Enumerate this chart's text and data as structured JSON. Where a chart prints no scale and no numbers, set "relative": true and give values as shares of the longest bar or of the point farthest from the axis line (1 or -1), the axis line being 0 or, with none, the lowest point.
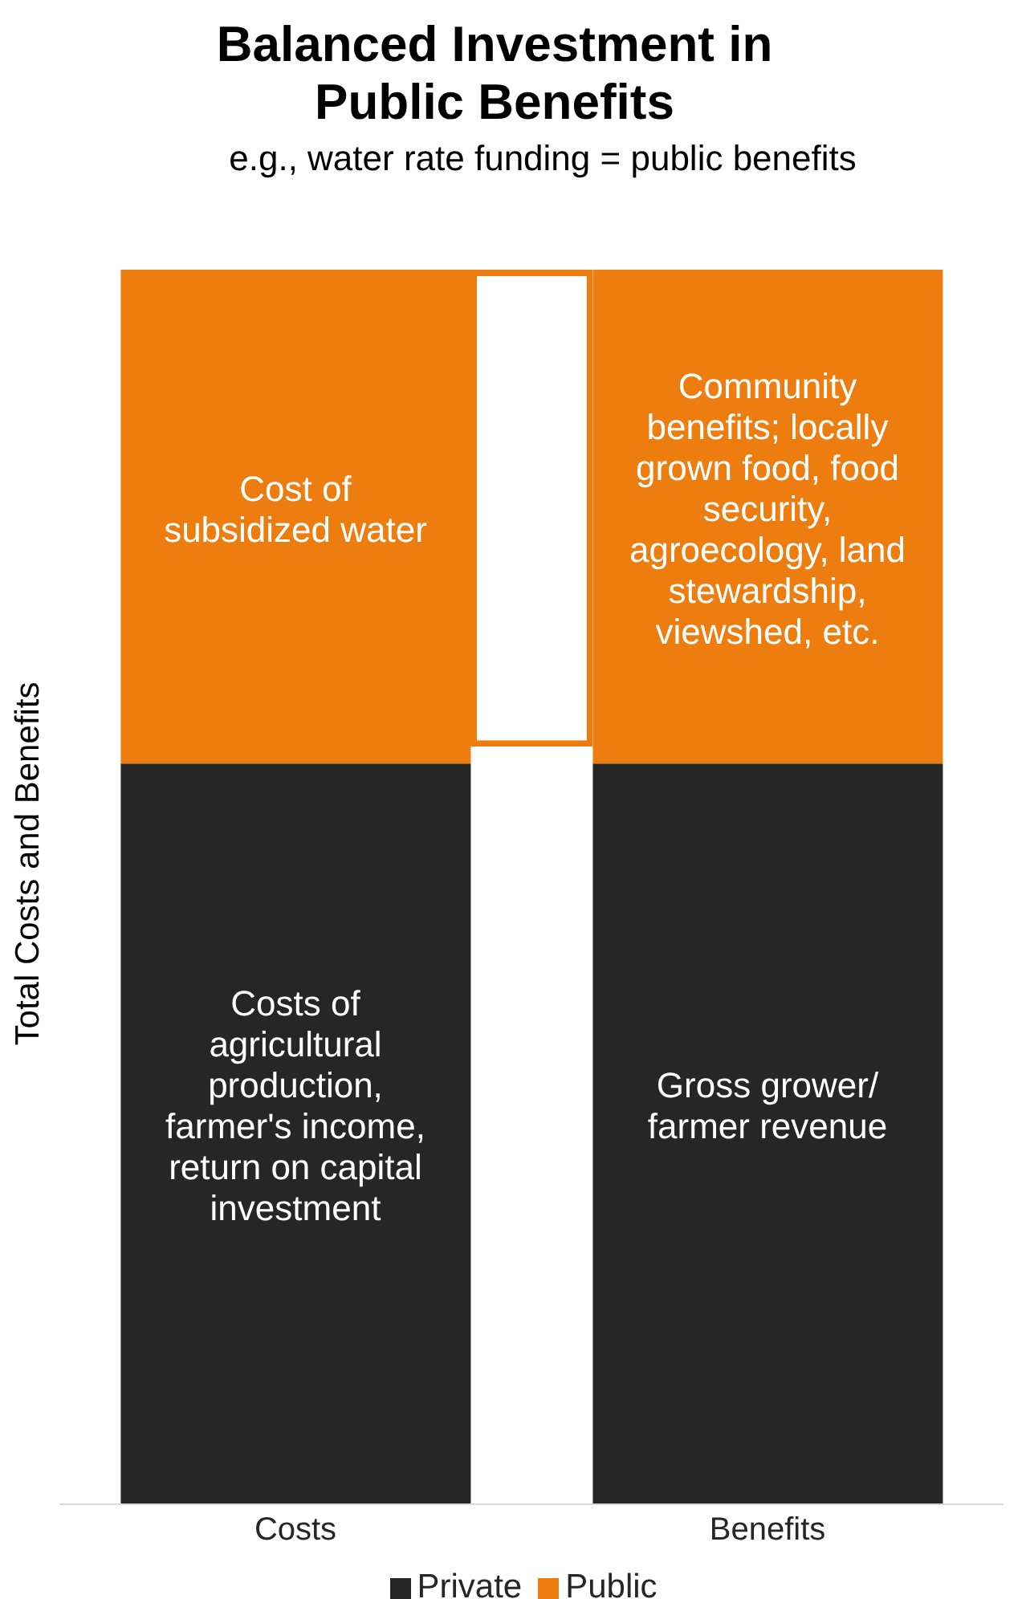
{
  "chart_data": {
    "type": "bar",
    "title": "Balanced Investment in Public Benefits",
    "subtitle": "e.g., water rate funding = public benefits",
    "ylabel": "Total Costs and Benefits",
    "categories": [
      "Costs",
      "Benefits"
    ],
    "stacked": true,
    "relative": true,
    "legend": "bottom",
    "grid": false,
    "series": [
      {
        "name": "Private",
        "color": "#262626",
        "values": [
          0.6,
          0.6
        ]
      },
      {
        "name": "Public",
        "color": "#ed7d0f",
        "values": [
          0.4,
          0.4
        ]
      }
    ],
    "annotations": [
      "Costs of agricultural production, farmer's income, return on capital investment",
      "Gross grower/ farmer revenue",
      "Cost of subsidized water",
      "Community benefits; locally grown food, food security, agroecology, land stewardship, viewshed, etc."
    ]
  }
}
